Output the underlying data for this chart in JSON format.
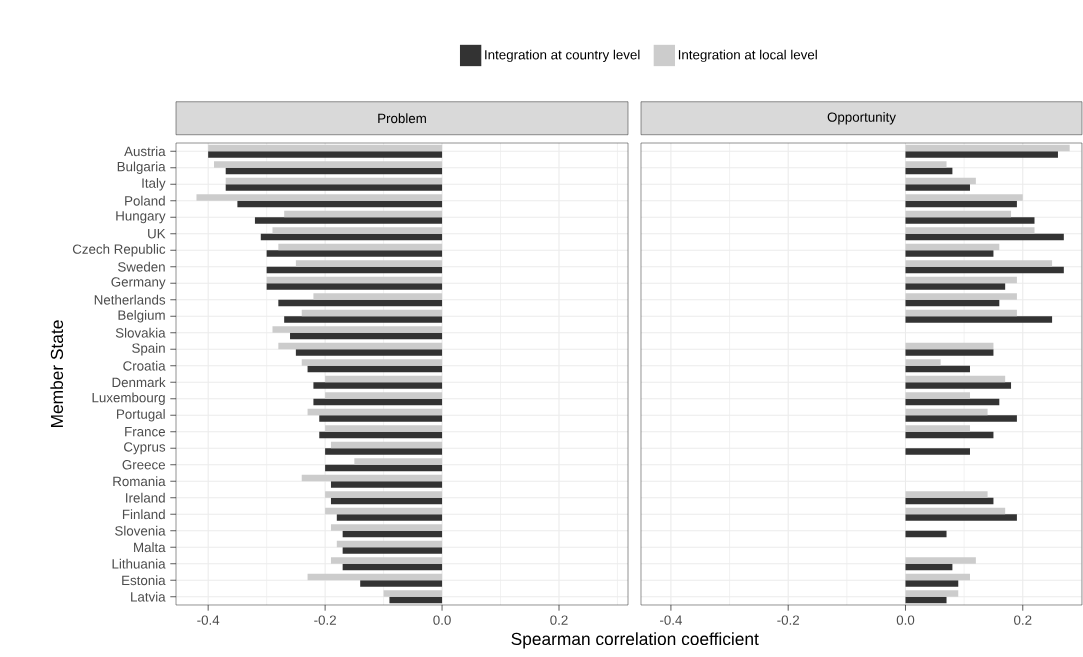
{
  "chart_data": [
    {
      "type": "bar",
      "orientation": "horizontal",
      "title": "Problem",
      "xlabel": "Spearman correlation coefficient",
      "ylabel": "Member State",
      "legend": "top",
      "grid": true,
      "categories": [
        "Austria",
        "Bulgaria",
        "Italy",
        "Poland",
        "Hungary",
        "UK",
        "Czech Republic",
        "Sweden",
        "Germany",
        "Netherlands",
        "Belgium",
        "Slovakia",
        "Spain",
        "Croatia",
        "Denmark",
        "Luxembourg",
        "Portugal",
        "France",
        "Cyprus",
        "Greece",
        "Romania",
        "Ireland",
        "Finland",
        "Slovenia",
        "Malta",
        "Lithuania",
        "Estonia",
        "Latvia"
      ],
      "xlim": [
        -0.455,
        0.318
      ],
      "xticks": [
        -0.4,
        -0.2,
        {
          "value": 0,
          "label": "0.0"
        },
        0.2
      ],
      "series": [
        {
          "name": "Integration at country level",
          "color": "#333333",
          "values": [
            -0.4,
            -0.37,
            -0.37,
            -0.35,
            -0.32,
            -0.31,
            -0.3,
            -0.3,
            -0.3,
            -0.28,
            -0.27,
            -0.26,
            -0.25,
            -0.23,
            -0.22,
            -0.22,
            -0.21,
            -0.21,
            -0.2,
            -0.2,
            -0.19,
            -0.19,
            -0.18,
            -0.17,
            -0.17,
            -0.17,
            -0.14,
            -0.09
          ]
        },
        {
          "name": "Integration at local level",
          "color": "#cccccc",
          "values": [
            -0.4,
            -0.39,
            -0.37,
            -0.42,
            -0.27,
            -0.29,
            -0.28,
            -0.25,
            -0.3,
            -0.22,
            -0.24,
            -0.29,
            -0.28,
            -0.24,
            -0.2,
            -0.2,
            -0.23,
            -0.2,
            -0.19,
            -0.15,
            -0.24,
            -0.2,
            -0.2,
            -0.19,
            -0.18,
            -0.19,
            -0.23,
            -0.1
          ]
        }
      ]
    },
    {
      "type": "bar",
      "orientation": "horizontal",
      "title": "Opportunity",
      "grid": true,
      "tick_labels": "x",
      "categories": [
        null,
        null,
        null,
        null,
        null,
        null,
        null,
        null,
        null,
        null,
        null,
        null,
        null,
        null,
        null,
        null,
        null,
        null,
        null,
        null,
        null,
        null,
        null,
        null,
        null,
        null,
        null,
        null
      ],
      "xlim": [
        -0.451,
        0.301
      ],
      "xticks": [
        -0.4,
        -0.2,
        {
          "value": 0,
          "label": "0.0"
        },
        0.2
      ],
      "series": [
        {
          "color": "#333333",
          "values": [
            0.26,
            0.08,
            0.11,
            0.19,
            0.22,
            0.27,
            0.15,
            0.27,
            0.17,
            0.16,
            0.25,
            null,
            0.15,
            0.11,
            0.18,
            0.16,
            0.19,
            0.15,
            0.11,
            null,
            null,
            0.15,
            0.19,
            0.07,
            null,
            0.08,
            0.09,
            0.07
          ]
        },
        {
          "color": "#cccccc",
          "values": [
            0.28,
            0.07,
            0.12,
            0.2,
            0.18,
            0.22,
            0.16,
            0.25,
            0.19,
            0.19,
            0.19,
            null,
            0.15,
            0.06,
            0.17,
            0.11,
            0.14,
            0.11,
            null,
            null,
            null,
            0.14,
            0.17,
            null,
            null,
            0.12,
            0.11,
            0.09
          ]
        }
      ]
    }
  ]
}
